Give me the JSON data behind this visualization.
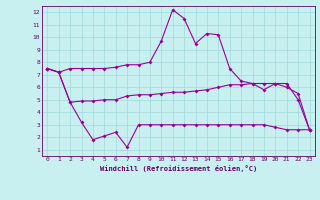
{
  "xlabel": "Windchill (Refroidissement éolien,°C)",
  "bg_color": "#c8f0f0",
  "grid_color": "#a0d8d8",
  "line_color": "#990099",
  "spine_color": "#660066",
  "xlim": [
    -0.5,
    23.5
  ],
  "ylim": [
    0.5,
    12.5
  ],
  "xticks": [
    0,
    1,
    2,
    3,
    4,
    5,
    6,
    7,
    8,
    9,
    10,
    11,
    12,
    13,
    14,
    15,
    16,
    17,
    18,
    19,
    20,
    21,
    22,
    23
  ],
  "yticks": [
    1,
    2,
    3,
    4,
    5,
    6,
    7,
    8,
    9,
    10,
    11,
    12
  ],
  "line1_x": [
    0,
    1,
    2,
    3,
    4,
    5,
    6,
    7,
    8,
    9,
    10,
    11,
    12,
    13,
    14,
    15,
    16,
    17,
    18,
    19,
    20,
    21,
    22,
    23
  ],
  "line1_y": [
    7.5,
    7.2,
    7.5,
    7.5,
    7.5,
    7.5,
    7.6,
    7.8,
    7.8,
    8.0,
    9.7,
    12.2,
    11.5,
    9.5,
    10.3,
    10.2,
    7.5,
    6.5,
    6.3,
    5.8,
    6.3,
    6.3,
    5.0,
    2.6
  ],
  "line2_x": [
    0,
    1,
    2,
    3,
    4,
    5,
    6,
    7,
    8,
    9,
    10,
    11,
    12,
    13,
    14,
    15,
    16,
    17,
    18,
    19,
    20,
    21,
    22,
    23
  ],
  "line2_y": [
    7.5,
    7.2,
    4.8,
    4.9,
    4.9,
    5.0,
    5.0,
    5.3,
    5.4,
    5.4,
    5.5,
    5.6,
    5.6,
    5.7,
    5.8,
    6.0,
    6.2,
    6.2,
    6.3,
    6.3,
    6.3,
    6.0,
    5.5,
    2.6
  ],
  "line3_x": [
    0,
    1,
    2,
    3,
    4,
    5,
    6,
    7,
    8,
    9,
    10,
    11,
    12,
    13,
    14,
    15,
    16,
    17,
    18,
    19,
    20,
    21,
    22,
    23
  ],
  "line3_y": [
    7.5,
    7.2,
    4.8,
    3.2,
    1.8,
    2.1,
    2.4,
    1.2,
    3.0,
    3.0,
    3.0,
    3.0,
    3.0,
    3.0,
    3.0,
    3.0,
    3.0,
    3.0,
    3.0,
    3.0,
    2.8,
    2.6,
    2.6,
    2.6
  ]
}
